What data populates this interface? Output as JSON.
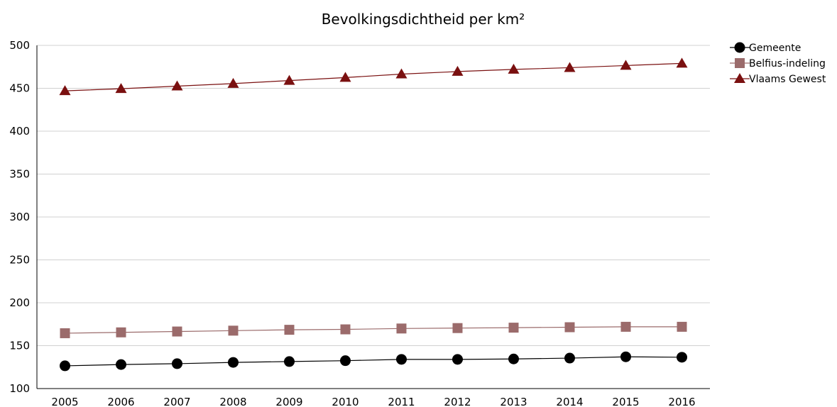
{
  "chart_data": {
    "type": "line",
    "title": "Bevolkingsdichtheid per km²",
    "xlabel": "",
    "ylabel": "",
    "categories": [
      "2005",
      "2006",
      "2007",
      "2008",
      "2009",
      "2010",
      "2011",
      "2012",
      "2013",
      "2014",
      "2015",
      "2016"
    ],
    "ylim": [
      100,
      500
    ],
    "yticks": [
      100,
      150,
      200,
      250,
      300,
      350,
      400,
      450,
      500
    ],
    "grid": true,
    "legend_position": "right",
    "series": [
      {
        "name": "Gemeente",
        "marker": "circle",
        "color": "#000000",
        "values": [
          126.5,
          128,
          129,
          130.5,
          131.5,
          132.5,
          134,
          134,
          134.5,
          135.5,
          137,
          136.5
        ]
      },
      {
        "name": "Belfius-indeling",
        "marker": "square",
        "color": "#9b6b6b",
        "values": [
          164.5,
          165.5,
          166.5,
          167.5,
          168.5,
          169,
          170,
          170.5,
          171,
          171.5,
          172,
          172
        ]
      },
      {
        "name": "Vlaams Gewest",
        "marker": "triangle",
        "color": "#7a1010",
        "values": [
          447,
          449.5,
          452.5,
          455.5,
          459,
          462.5,
          466.5,
          469.5,
          472,
          474,
          476.5,
          479
        ]
      }
    ]
  }
}
